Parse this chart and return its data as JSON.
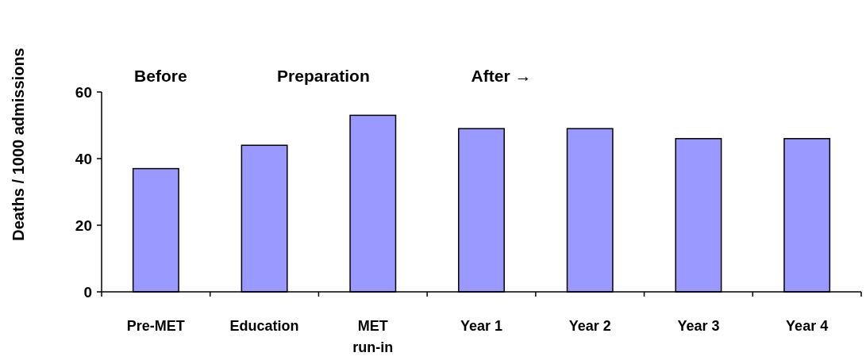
{
  "chart_data": {
    "type": "bar",
    "ylabel": "Deaths / 1000 admissions",
    "categories": [
      "Pre-MET",
      "Education",
      "MET run-in",
      "Year 1",
      "Year 2",
      "Year 3",
      "Year 4"
    ],
    "values": [
      37,
      44,
      53,
      49,
      49,
      46,
      46
    ],
    "color": "#9999ff",
    "ylim": [
      0,
      60
    ],
    "yticks": [
      0,
      20,
      40,
      60
    ],
    "grid": false,
    "annotations": [
      "Before",
      "Preparation",
      "After →"
    ]
  }
}
